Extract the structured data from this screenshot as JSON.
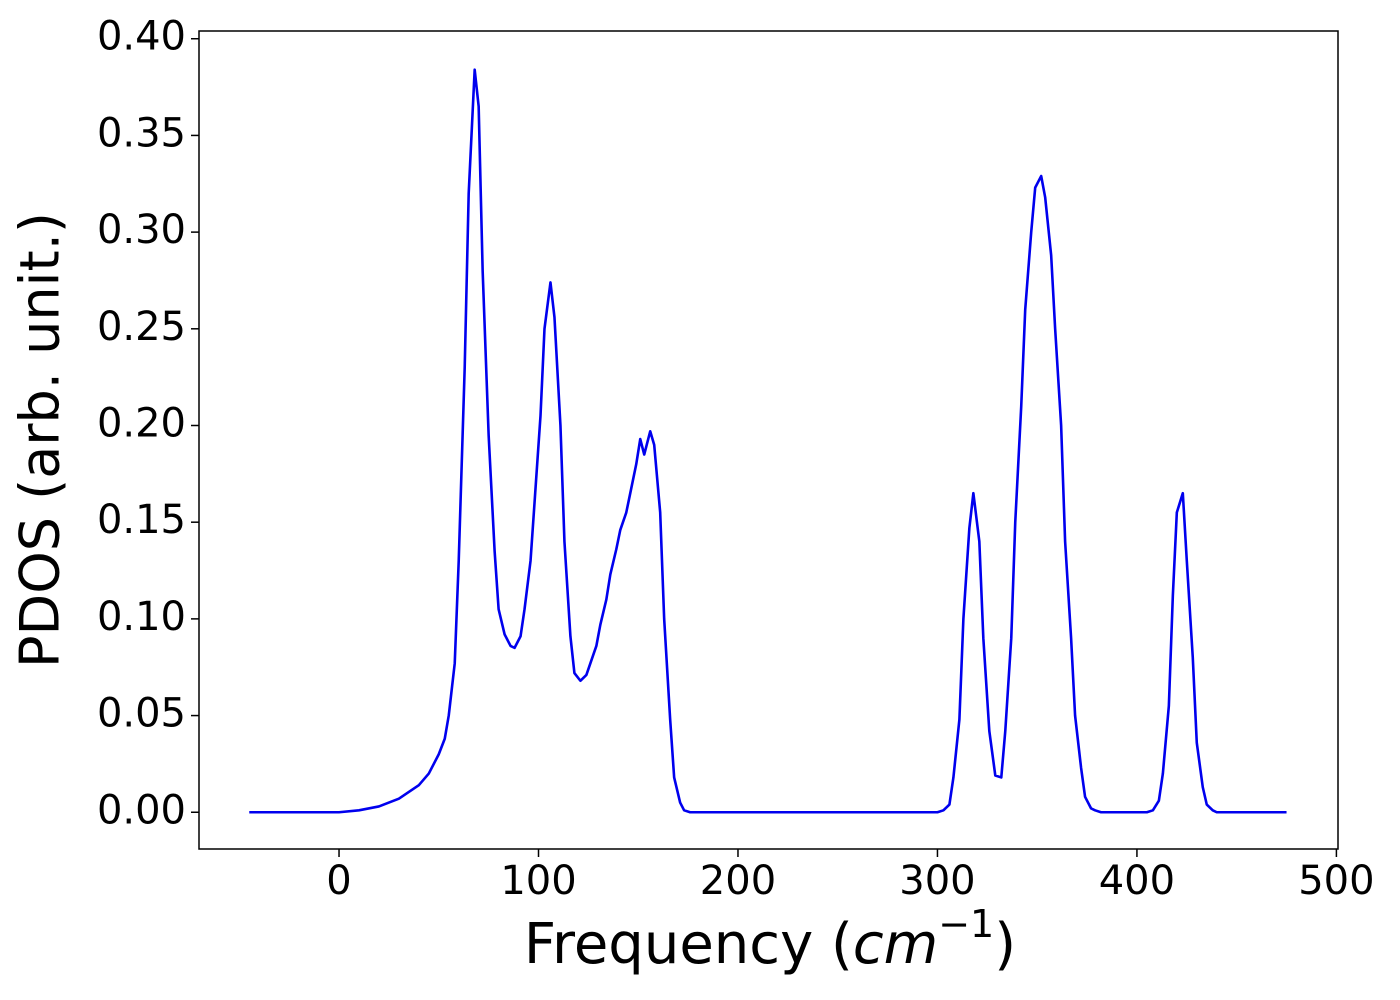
{
  "chart_data": {
    "type": "line",
    "xlabel": [
      "Frequency (",
      "cm",
      "−1",
      ")"
    ],
    "ylabel": "PDOS (arb. unit.)",
    "color": "#0000ee",
    "x": [
      -45,
      0,
      10,
      20,
      30,
      40,
      45,
      50,
      53,
      55,
      58,
      60,
      63,
      65,
      68,
      70,
      72,
      75,
      78,
      80,
      83,
      86,
      88,
      91,
      93,
      96,
      98,
      101,
      103,
      106,
      108,
      111,
      113,
      116,
      118,
      121,
      124,
      126,
      129,
      131,
      134,
      136,
      139,
      141,
      144,
      146,
      149,
      151,
      153,
      156,
      158,
      161,
      163,
      166,
      168,
      171,
      173,
      176,
      300,
      303,
      306,
      308,
      311,
      313,
      316,
      318,
      321,
      323,
      326,
      329,
      332,
      334,
      337,
      339,
      342,
      344,
      347,
      349,
      352,
      354,
      357,
      359,
      362,
      364,
      367,
      369,
      372,
      374,
      377,
      379,
      382,
      405,
      408,
      411,
      413,
      416,
      418,
      420,
      423,
      425,
      428,
      430,
      433,
      435,
      438,
      440,
      475
    ],
    "values": [
      0,
      0,
      0.001,
      0.003,
      0.007,
      0.014,
      0.02,
      0.03,
      0.038,
      0.05,
      0.077,
      0.13,
      0.23,
      0.32,
      0.384,
      0.365,
      0.28,
      0.195,
      0.135,
      0.105,
      0.092,
      0.086,
      0.085,
      0.091,
      0.105,
      0.13,
      0.16,
      0.205,
      0.25,
      0.274,
      0.256,
      0.2,
      0.14,
      0.091,
      0.072,
      0.068,
      0.071,
      0.077,
      0.086,
      0.097,
      0.11,
      0.123,
      0.136,
      0.146,
      0.155,
      0.165,
      0.18,
      0.193,
      0.185,
      0.197,
      0.19,
      0.155,
      0.1,
      0.048,
      0.018,
      0.005,
      0.001,
      0,
      0,
      0.001,
      0.004,
      0.018,
      0.048,
      0.1,
      0.147,
      0.165,
      0.14,
      0.09,
      0.042,
      0.019,
      0.018,
      0.042,
      0.09,
      0.15,
      0.21,
      0.26,
      0.3,
      0.323,
      0.329,
      0.318,
      0.288,
      0.25,
      0.2,
      0.14,
      0.09,
      0.05,
      0.023,
      0.008,
      0.002,
      0.001,
      0,
      0,
      0.001,
      0.006,
      0.02,
      0.055,
      0.112,
      0.155,
      0.165,
      0.13,
      0.08,
      0.036,
      0.013,
      0.004,
      0.001,
      0,
      0
    ],
    "xlim": [
      -70.2,
      500.8
    ],
    "xticks": [
      0,
      100,
      200,
      300,
      400,
      500
    ],
    "ylim": [
      -0.019,
      0.404
    ],
    "yticks": [
      {
        "value": 0,
        "label": "0.00"
      },
      {
        "value": 0.05,
        "label": "0.05"
      },
      {
        "value": 0.1,
        "label": "0.10"
      },
      {
        "value": 0.15,
        "label": "0.15"
      },
      {
        "value": 0.2,
        "label": "0.20"
      },
      {
        "value": 0.25,
        "label": "0.25"
      },
      {
        "value": 0.3,
        "label": "0.30"
      },
      {
        "value": 0.35,
        "label": "0.35"
      },
      {
        "value": 0.4,
        "label": "0.40"
      }
    ]
  }
}
